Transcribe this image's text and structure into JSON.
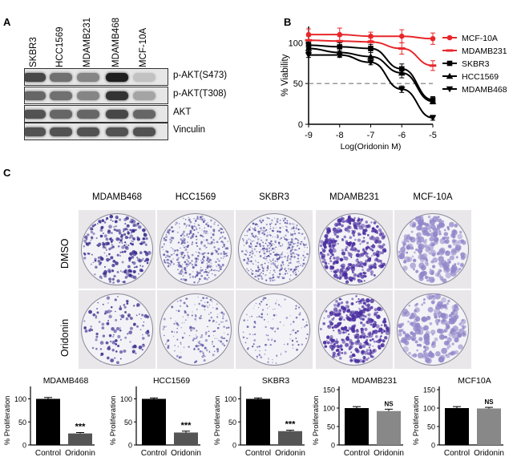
{
  "panel_a": {
    "letter": "A",
    "cell_lines": [
      "SKBR3",
      "HCC1569",
      "MDAMB231",
      "MDAMB468",
      "MCF-10A"
    ],
    "blots": [
      {
        "label": "p-AKT(S473)",
        "intensity": [
          0.75,
          0.55,
          0.45,
          0.95,
          0.15
        ]
      },
      {
        "label": "p-AKT(T308)",
        "intensity": [
          0.6,
          0.55,
          0.45,
          0.85,
          0.3
        ]
      },
      {
        "label": "AKT",
        "intensity": [
          0.7,
          0.6,
          0.6,
          0.75,
          0.6
        ]
      },
      {
        "label": "Vinculin",
        "intensity": [
          0.7,
          0.7,
          0.7,
          0.7,
          0.7
        ]
      }
    ]
  },
  "panel_b": {
    "letter": "B",
    "chart_data": {
      "type": "line",
      "xlabel": "Log(Oridonin M)",
      "ylabel": "% Viability",
      "xlim": [
        -9,
        -5
      ],
      "ylim": [
        0,
        120
      ],
      "xticks": [
        -9,
        -8,
        -7,
        -6,
        -5
      ],
      "yticks": [
        0,
        50,
        100
      ],
      "reference_line": 50,
      "legend_position": "right",
      "series": [
        {
          "name": "MCF-10A",
          "color": "#e8272a",
          "marker": "circle",
          "x": [
            -9,
            -8,
            -7,
            -6,
            -5
          ],
          "y": [
            110,
            110,
            108,
            108,
            105
          ],
          "err": [
            7,
            8,
            5,
            8,
            7
          ]
        },
        {
          "name": "MDAMB231",
          "color": "#e8272a",
          "marker": "bar",
          "x": [
            -9,
            -8,
            -7,
            -6,
            -5
          ],
          "y": [
            103,
            102,
            101,
            93,
            72
          ],
          "err": [
            5,
            6,
            5,
            7,
            6
          ]
        },
        {
          "name": "SKBR3",
          "color": "#000000",
          "marker": "square",
          "x": [
            -9,
            -8,
            -7,
            -6,
            -5
          ],
          "y": [
            97,
            95,
            93,
            68,
            30
          ],
          "err": [
            4,
            5,
            5,
            6,
            4
          ]
        },
        {
          "name": "HCC1569",
          "color": "#000000",
          "marker": "triangle-up",
          "x": [
            -9,
            -8,
            -7,
            -6,
            -5
          ],
          "y": [
            93,
            88,
            83,
            63,
            28
          ],
          "err": [
            4,
            5,
            7,
            6,
            3
          ]
        },
        {
          "name": "MDAMB468",
          "color": "#000000",
          "marker": "triangle-down",
          "x": [
            -9,
            -8,
            -7,
            -6,
            -5
          ],
          "y": [
            85,
            85,
            76,
            43,
            8
          ],
          "err": [
            3,
            3,
            3,
            4,
            3
          ]
        }
      ]
    }
  },
  "panel_c": {
    "letter": "C",
    "row_labels": [
      "DMSO",
      "Oridonin"
    ],
    "columns": [
      {
        "title": "MDAMB468",
        "tint": "#3a2f8f",
        "dmso_density": 0.55,
        "ori_density": 0.18,
        "size": 1.2
      },
      {
        "title": "HCC1569",
        "tint": "#5e5aa8",
        "dmso_density": 0.65,
        "ori_density": 0.25,
        "size": 0.8
      },
      {
        "title": "SKBR3",
        "tint": "#5a56a6",
        "dmso_density": 0.75,
        "ori_density": 0.12,
        "size": 0.7
      },
      {
        "title": "MDAMB231",
        "tint": "#4a2ea0",
        "dmso_density": 0.95,
        "ori_density": 0.9,
        "size": 1.4
      },
      {
        "title": "MCF-10A",
        "tint": "#9186c9",
        "dmso_density": 0.7,
        "ori_density": 0.6,
        "size": 2.0
      }
    ],
    "chart_data": [
      {
        "type": "bar",
        "title": "MDAMB468",
        "ylabel": "% Proliferation",
        "categories": [
          "Control",
          "Oridonin"
        ],
        "values": [
          100,
          25
        ],
        "err": [
          3,
          2
        ],
        "ylim": [
          0,
          120
        ],
        "yticks": [
          0,
          50,
          100
        ],
        "colors": [
          "#000000",
          "#555555"
        ],
        "significance": "***"
      },
      {
        "type": "bar",
        "title": "HCC1569",
        "ylabel": "% Proliferation",
        "categories": [
          "Control",
          "Oridonin"
        ],
        "values": [
          100,
          27
        ],
        "err": [
          2,
          3
        ],
        "ylim": [
          0,
          120
        ],
        "yticks": [
          0,
          50,
          100
        ],
        "colors": [
          "#000000",
          "#555555"
        ],
        "significance": "***"
      },
      {
        "type": "bar",
        "title": "SKBR3",
        "ylabel": "% Proliferation",
        "categories": [
          "Control",
          "Oridonin"
        ],
        "values": [
          100,
          30
        ],
        "err": [
          2,
          2
        ],
        "ylim": [
          0,
          120
        ],
        "yticks": [
          0,
          50,
          100
        ],
        "colors": [
          "#000000",
          "#555555"
        ],
        "significance": "***"
      },
      {
        "type": "bar",
        "title": "MDAMB231",
        "ylabel": "% Proliferation",
        "categories": [
          "Control",
          "Oridonin"
        ],
        "values": [
          100,
          92
        ],
        "err": [
          4,
          5
        ],
        "ylim": [
          0,
          150
        ],
        "yticks": [
          0,
          50,
          100,
          150
        ],
        "colors": [
          "#000000",
          "#888888"
        ],
        "significance": "NS"
      },
      {
        "type": "bar",
        "title": "MCF10A",
        "ylabel": "% Proliferation",
        "categories": [
          "Control",
          "Oridonin"
        ],
        "values": [
          100,
          99
        ],
        "err": [
          4,
          3
        ],
        "ylim": [
          0,
          150
        ],
        "yticks": [
          0,
          50,
          100,
          150
        ],
        "colors": [
          "#000000",
          "#888888"
        ],
        "significance": "NS"
      }
    ]
  }
}
